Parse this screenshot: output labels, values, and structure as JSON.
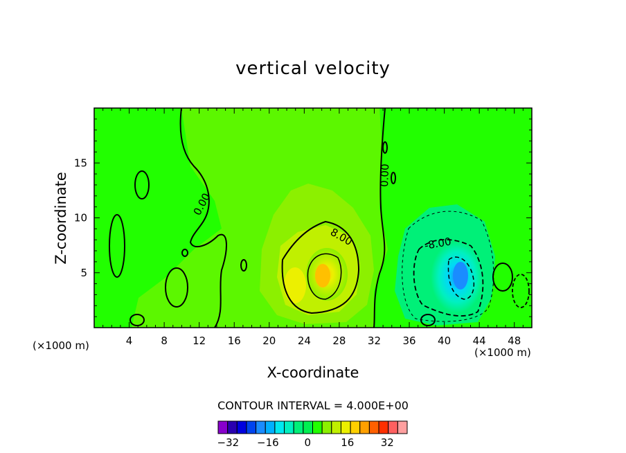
{
  "chart_data": {
    "type": "heatmap",
    "title": "vertical velocity",
    "xlabel": "X-coordinate",
    "ylabel": "Z-coordinate",
    "x_unit_label": "(×1000 m)",
    "xlim": [
      0,
      50
    ],
    "ylim": [
      0,
      20
    ],
    "x_ticks": [
      4,
      8,
      12,
      16,
      20,
      24,
      28,
      32,
      36,
      40,
      44,
      48
    ],
    "y_ticks": [
      5,
      10,
      15
    ],
    "contour_interval_label": "CONTOUR INTERVAL = 4.000E+00",
    "contour_interval": 4,
    "contour_labels": [
      "0.00",
      "8.00",
      "0.00",
      "-8.00"
    ],
    "colorbar": {
      "levels": [
        -36,
        -32,
        -28,
        -24,
        -20,
        -16,
        -12,
        -8,
        -4,
        0,
        4,
        8,
        12,
        16,
        20,
        24,
        28,
        32,
        36,
        40
      ],
      "tick_labels": [
        "-32",
        "-16",
        "0",
        "16",
        "32"
      ],
      "tick_values": [
        -32,
        -16,
        0,
        16,
        32
      ],
      "colors": [
        "#8800cc",
        "#2a00b0",
        "#0000e0",
        "#0044ee",
        "#1a8cff",
        "#00b0ff",
        "#00e8f0",
        "#00f0c0",
        "#00f078",
        "#00f050",
        "#22ff00",
        "#8cf000",
        "#c0f000",
        "#ecf000",
        "#ffd000",
        "#ffa000",
        "#ff6000",
        "#ff3000",
        "#ff6060",
        "#ffa0a0"
      ]
    },
    "features": [
      {
        "kind": "updraft",
        "x": 25.5,
        "z": 4.5,
        "peak_value": 24
      },
      {
        "kind": "updraft",
        "x": 22.5,
        "z": 4,
        "peak_value": 16
      },
      {
        "kind": "downdraft",
        "x": 41.5,
        "z": 5,
        "peak_value": -20
      }
    ]
  }
}
